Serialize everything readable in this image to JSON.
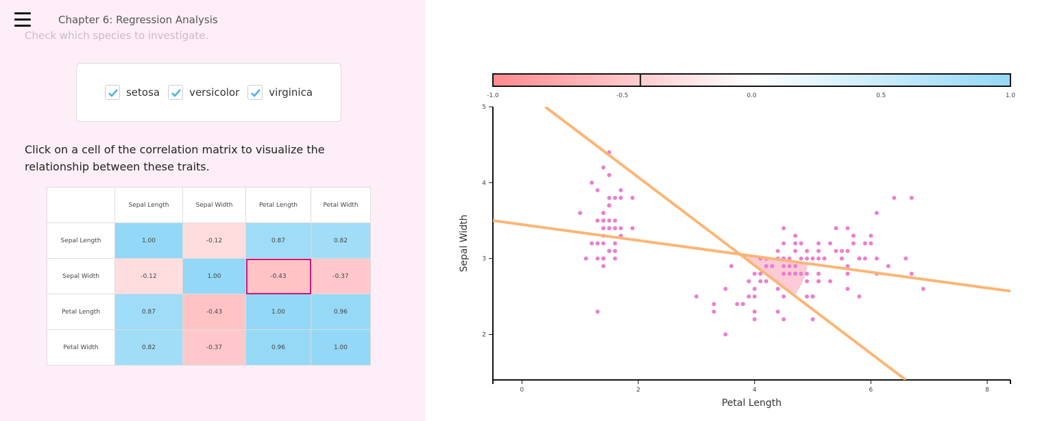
{
  "header": {
    "chapter_title": "Chapter 6: Regression Analysis",
    "menu_icon": "hamburger-menu-icon"
  },
  "species_section": {
    "instruction": "Check which species to investigate.",
    "options": [
      {
        "label": "setosa",
        "checked": true
      },
      {
        "label": "versicolor",
        "checked": true
      },
      {
        "label": "virginica",
        "checked": true
      }
    ]
  },
  "matrix_section": {
    "instruction": "Click on a cell of the correlation matrix to visualize the relationship between these traits.",
    "columns": [
      "Sepal Length",
      "Sepal Width",
      "Petal Length",
      "Petal Width"
    ],
    "rows": [
      {
        "label": "Sepal Length",
        "values": [
          "1.00",
          "-0.12",
          "0.87",
          "0.82"
        ]
      },
      {
        "label": "Sepal Width",
        "values": [
          "-0.12",
          "1.00",
          "-0.43",
          "-0.37"
        ]
      },
      {
        "label": "Petal Length",
        "values": [
          "0.87",
          "-0.43",
          "1.00",
          "0.96"
        ]
      },
      {
        "label": "Petal Width",
        "values": [
          "0.82",
          "-0.37",
          "0.96",
          "1.00"
        ]
      }
    ],
    "selected_cell": {
      "row": 1,
      "col": 2
    }
  },
  "colors": {
    "positive": "#93d8f6",
    "negative": "#ff8a8f",
    "point": "#ea7fcf",
    "line": "#fdb574",
    "selection": "#c8177a",
    "angle_fill": "#fdc2cf"
  },
  "chart_data": {
    "type": "scatter",
    "xlabel": "Petal Length",
    "ylabel": "Sepal Width",
    "xlim": [
      -0.5,
      8.4
    ],
    "ylim": [
      1.4,
      5
    ],
    "xticks": [
      0,
      2,
      4,
      6,
      8
    ],
    "yticks": [
      2,
      3,
      4,
      5
    ],
    "correlation": -0.43,
    "colorbar": {
      "range": [
        -1,
        1
      ],
      "ticks": [
        "-1.0",
        "-0.5",
        "0.0",
        "0.5",
        "1.0"
      ],
      "marker": -0.43
    },
    "lines": [
      {
        "x1": -0.5,
        "y1": 3.5,
        "x2": 8.4,
        "y2": 2.57
      },
      {
        "x1": 0.4,
        "y1": 5.0,
        "x2": 6.6,
        "y2": 1.4
      }
    ],
    "points": [
      [
        1.4,
        3.5
      ],
      [
        1.4,
        3.0
      ],
      [
        1.3,
        3.2
      ],
      [
        1.5,
        3.1
      ],
      [
        1.4,
        3.6
      ],
      [
        1.7,
        3.9
      ],
      [
        1.4,
        3.4
      ],
      [
        1.5,
        3.4
      ],
      [
        1.4,
        2.9
      ],
      [
        1.5,
        3.1
      ],
      [
        1.5,
        3.7
      ],
      [
        1.6,
        3.4
      ],
      [
        1.4,
        3.0
      ],
      [
        1.1,
        3.0
      ],
      [
        1.2,
        4.0
      ],
      [
        1.5,
        4.4
      ],
      [
        1.3,
        3.9
      ],
      [
        1.4,
        3.5
      ],
      [
        1.7,
        3.8
      ],
      [
        1.5,
        3.8
      ],
      [
        1.7,
        3.4
      ],
      [
        1.5,
        3.7
      ],
      [
        1.0,
        3.6
      ],
      [
        1.7,
        3.3
      ],
      [
        1.9,
        3.4
      ],
      [
        1.6,
        3.0
      ],
      [
        1.6,
        3.4
      ],
      [
        1.5,
        3.5
      ],
      [
        1.4,
        3.4
      ],
      [
        1.6,
        3.2
      ],
      [
        1.6,
        3.1
      ],
      [
        1.5,
        3.4
      ],
      [
        1.5,
        4.1
      ],
      [
        1.4,
        4.2
      ],
      [
        1.5,
        3.1
      ],
      [
        1.2,
        3.2
      ],
      [
        1.3,
        3.5
      ],
      [
        1.4,
        3.6
      ],
      [
        1.3,
        3.0
      ],
      [
        1.5,
        3.4
      ],
      [
        1.3,
        3.5
      ],
      [
        1.3,
        2.3
      ],
      [
        1.3,
        3.2
      ],
      [
        1.6,
        3.5
      ],
      [
        1.9,
        3.8
      ],
      [
        1.4,
        3.0
      ],
      [
        1.6,
        3.8
      ],
      [
        1.4,
        3.2
      ],
      [
        1.5,
        3.7
      ],
      [
        1.4,
        3.3
      ],
      [
        4.7,
        3.2
      ],
      [
        4.5,
        3.2
      ],
      [
        4.9,
        3.1
      ],
      [
        4.0,
        2.3
      ],
      [
        4.6,
        2.8
      ],
      [
        4.5,
        2.8
      ],
      [
        4.7,
        3.3
      ],
      [
        3.3,
        2.4
      ],
      [
        4.6,
        2.9
      ],
      [
        3.9,
        2.7
      ],
      [
        3.5,
        2.0
      ],
      [
        4.2,
        3.0
      ],
      [
        4.0,
        2.2
      ],
      [
        4.7,
        2.9
      ],
      [
        3.6,
        2.9
      ],
      [
        4.4,
        3.1
      ],
      [
        4.5,
        3.0
      ],
      [
        4.1,
        2.7
      ],
      [
        4.5,
        2.2
      ],
      [
        3.9,
        2.5
      ],
      [
        4.8,
        3.2
      ],
      [
        4.0,
        2.8
      ],
      [
        4.9,
        2.5
      ],
      [
        4.7,
        2.8
      ],
      [
        4.3,
        2.9
      ],
      [
        4.4,
        3.0
      ],
      [
        4.8,
        2.8
      ],
      [
        5.0,
        3.0
      ],
      [
        4.5,
        2.9
      ],
      [
        3.5,
        2.6
      ],
      [
        3.8,
        2.4
      ],
      [
        3.7,
        2.4
      ],
      [
        3.9,
        2.7
      ],
      [
        5.1,
        2.7
      ],
      [
        4.5,
        3.0
      ],
      [
        4.5,
        3.4
      ],
      [
        4.7,
        3.1
      ],
      [
        4.4,
        2.3
      ],
      [
        4.1,
        3.0
      ],
      [
        4.0,
        2.5
      ],
      [
        4.4,
        2.6
      ],
      [
        4.6,
        3.0
      ],
      [
        4.0,
        2.6
      ],
      [
        3.3,
        2.3
      ],
      [
        4.2,
        2.7
      ],
      [
        4.2,
        3.0
      ],
      [
        4.2,
        2.9
      ],
      [
        4.3,
        2.9
      ],
      [
        3.0,
        2.5
      ],
      [
        4.1,
        2.8
      ],
      [
        6.0,
        3.3
      ],
      [
        5.1,
        2.7
      ],
      [
        5.9,
        3.0
      ],
      [
        5.6,
        2.9
      ],
      [
        5.8,
        3.0
      ],
      [
        6.6,
        3.0
      ],
      [
        4.5,
        2.5
      ],
      [
        6.3,
        2.9
      ],
      [
        5.8,
        2.5
      ],
      [
        6.1,
        3.6
      ],
      [
        5.1,
        3.2
      ],
      [
        5.3,
        2.7
      ],
      [
        5.5,
        3.0
      ],
      [
        5.0,
        2.5
      ],
      [
        5.1,
        2.8
      ],
      [
        5.3,
        3.2
      ],
      [
        5.5,
        3.0
      ],
      [
        6.7,
        3.8
      ],
      [
        6.9,
        2.6
      ],
      [
        5.0,
        2.2
      ],
      [
        5.7,
        3.2
      ],
      [
        4.9,
        2.8
      ],
      [
        6.7,
        2.8
      ],
      [
        4.9,
        2.7
      ],
      [
        5.7,
        3.3
      ],
      [
        6.0,
        3.2
      ],
      [
        4.8,
        2.8
      ],
      [
        4.9,
        3.0
      ],
      [
        5.6,
        2.8
      ],
      [
        5.8,
        3.0
      ],
      [
        6.1,
        2.8
      ],
      [
        6.4,
        3.8
      ],
      [
        5.6,
        2.8
      ],
      [
        5.1,
        2.8
      ],
      [
        5.6,
        2.6
      ],
      [
        6.1,
        3.0
      ],
      [
        5.6,
        3.4
      ],
      [
        5.5,
        3.1
      ],
      [
        4.8,
        3.0
      ],
      [
        5.4,
        3.1
      ],
      [
        5.6,
        3.1
      ],
      [
        5.1,
        3.1
      ],
      [
        5.1,
        2.7
      ],
      [
        5.9,
        3.2
      ],
      [
        5.7,
        3.3
      ],
      [
        5.2,
        3.0
      ],
      [
        5.0,
        2.5
      ],
      [
        5.2,
        3.0
      ],
      [
        5.4,
        3.4
      ],
      [
        5.1,
        3.0
      ]
    ]
  }
}
